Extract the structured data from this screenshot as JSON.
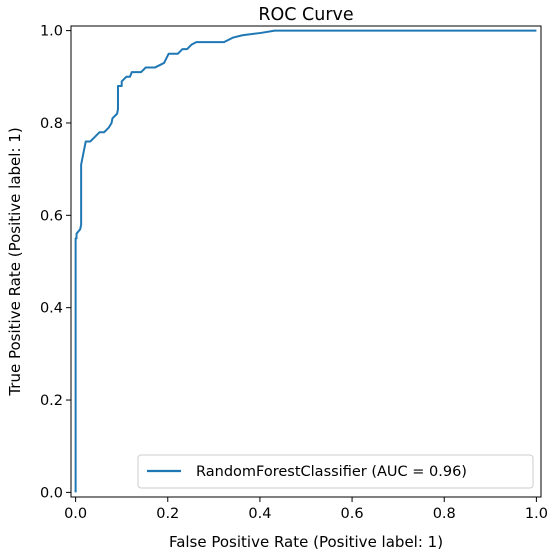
{
  "chart_data": {
    "type": "line",
    "title": "ROC Curve",
    "xlabel": "False Positive Rate (Positive label: 1)",
    "ylabel": "True Positive Rate (Positive label: 1)",
    "xlim": [
      -0.01,
      1.01
    ],
    "ylim": [
      -0.01,
      1.01
    ],
    "xticks": [
      0.0,
      0.2,
      0.4,
      0.6,
      0.8,
      1.0
    ],
    "xtick_labels": [
      "0.0",
      "0.2",
      "0.4",
      "0.6",
      "0.8",
      "1.0"
    ],
    "yticks": [
      0.0,
      0.2,
      0.4,
      0.6,
      0.8,
      1.0
    ],
    "ytick_labels": [
      "0.0",
      "0.2",
      "0.4",
      "0.6",
      "0.8",
      "1.0"
    ],
    "grid": false,
    "legend_position": "lower-right",
    "series": [
      {
        "name": "RandomForestClassifier (AUC = 0.96)",
        "color": "#1f77b4",
        "x": [
          0.0,
          0.0,
          0.002,
          0.002,
          0.01,
          0.012,
          0.012,
          0.022,
          0.032,
          0.042,
          0.052,
          0.062,
          0.072,
          0.078,
          0.08,
          0.09,
          0.092,
          0.092,
          0.1,
          0.1,
          0.11,
          0.112,
          0.118,
          0.122,
          0.142,
          0.152,
          0.172,
          0.192,
          0.202,
          0.222,
          0.232,
          0.242,
          0.252,
          0.262,
          0.322,
          0.342,
          0.362,
          0.402,
          0.432,
          0.442,
          1.0
        ],
        "y": [
          0.0,
          0.55,
          0.55,
          0.56,
          0.57,
          0.58,
          0.71,
          0.76,
          0.76,
          0.77,
          0.78,
          0.78,
          0.79,
          0.8,
          0.81,
          0.82,
          0.83,
          0.88,
          0.88,
          0.89,
          0.9,
          0.9,
          0.9,
          0.91,
          0.91,
          0.92,
          0.92,
          0.93,
          0.95,
          0.95,
          0.96,
          0.96,
          0.97,
          0.975,
          0.975,
          0.985,
          0.99,
          0.995,
          1.0,
          1.0,
          1.0
        ]
      }
    ]
  }
}
